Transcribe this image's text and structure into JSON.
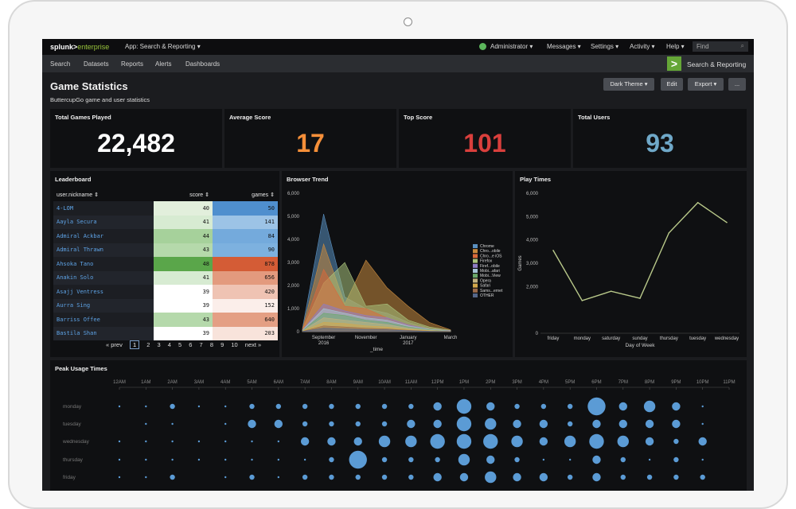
{
  "topbar": {
    "logo_main": "splunk>",
    "logo_sub": "enterprise",
    "app_menu": "App: Search & Reporting ▾",
    "user_menu": "Administrator ▾",
    "messages": "Messages ▾",
    "settings": "Settings ▾",
    "activity": "Activity ▾",
    "help": "Help ▾",
    "find_placeholder": "Find"
  },
  "nav": {
    "items": [
      "Search",
      "Datasets",
      "Reports",
      "Alerts",
      "Dashboards"
    ],
    "app_label": "Search & Reporting",
    "app_icon": ">"
  },
  "header": {
    "title": "Game Statistics",
    "subtitle": "ButtercupGo game and user statistics",
    "theme_button": "Dark Theme ▾",
    "edit_button": "Edit",
    "export_button": "Export ▾",
    "more_button": "..."
  },
  "kpis": [
    {
      "label": "Total Games Played",
      "value": "22,482",
      "color": "#ffffff"
    },
    {
      "label": "Average Score",
      "value": "17",
      "color": "#f58f39"
    },
    {
      "label": "Top Score",
      "value": "101",
      "color": "#d93f3c"
    },
    {
      "label": "Total Users",
      "value": "93",
      "color": "#6fa8c8"
    }
  ],
  "leaderboard": {
    "title": "Leaderboard",
    "columns": [
      "user.nickname ⇕",
      "score ⇕",
      "games ⇕"
    ],
    "rows": [
      {
        "name": "4-LOM",
        "score": "40",
        "games": "50",
        "score_bg": "#e2efdc",
        "games_bg": "#4f8fce"
      },
      {
        "name": "Aayla Secura",
        "score": "41",
        "games": "141",
        "score_bg": "#d7ebd2",
        "games_bg": "#9cc3e6"
      },
      {
        "name": "Admiral Ackbar",
        "score": "44",
        "games": "84",
        "score_bg": "#a6d19b",
        "games_bg": "#74aadc"
      },
      {
        "name": "Admiral Thrawn",
        "score": "43",
        "games": "90",
        "score_bg": "#b5d9ab",
        "games_bg": "#7db1df"
      },
      {
        "name": "Ahsoka Tano",
        "score": "48",
        "games": "878",
        "score_bg": "#5aa64a",
        "games_bg": "#d45c36"
      },
      {
        "name": "Anakin Solo",
        "score": "41",
        "games": "656",
        "score_bg": "#d7ebd2",
        "games_bg": "#e39a7e"
      },
      {
        "name": "Asajj Ventress",
        "score": "39",
        "games": "420",
        "score_bg": "#ffffff",
        "games_bg": "#efc3b3"
      },
      {
        "name": "Aurra Sing",
        "score": "39",
        "games": "152",
        "score_bg": "#ffffff",
        "games_bg": "#fbeeea"
      },
      {
        "name": "Barriss Offee",
        "score": "43",
        "games": "640",
        "score_bg": "#b5d9ab",
        "games_bg": "#e49f84"
      },
      {
        "name": "Bastila Shan",
        "score": "39",
        "games": "203",
        "score_bg": "#ffffff",
        "games_bg": "#f8e3db"
      }
    ],
    "pager": {
      "prev": "« prev",
      "pages": [
        "1",
        "2",
        "3",
        "4",
        "5",
        "6",
        "7",
        "8",
        "9",
        "10"
      ],
      "current": "1",
      "next": "next »"
    }
  },
  "chart_data": [
    {
      "type": "area",
      "title": "Browser Trend",
      "xlabel": "_time",
      "ylabel": "",
      "ylim": [
        0,
        6000
      ],
      "yticks": [
        "0",
        "1,000",
        "2,000",
        "3,000",
        "4,000",
        "5,000",
        "6,000"
      ],
      "x": [
        "Aug 2016",
        "September 2016",
        "Oct 2016",
        "November",
        "Dec",
        "January 2017",
        "Feb",
        "March"
      ],
      "xtick_labels": [
        "September\n2016",
        "November",
        "January\n2017",
        "March"
      ],
      "series": [
        {
          "name": "Chrome",
          "color": "#5a8fbf",
          "values": [
            150,
            5100,
            1500,
            1000,
            800,
            400,
            150,
            50
          ]
        },
        {
          "name": "Chro...obile",
          "color": "#c98a3e",
          "values": [
            100,
            3800,
            1200,
            3100,
            1900,
            1100,
            400,
            80
          ]
        },
        {
          "name": "Chro...e iOS",
          "color": "#d96a3a",
          "values": [
            80,
            2700,
            1100,
            1000,
            600,
            300,
            100,
            40
          ]
        },
        {
          "name": "Firefox",
          "color": "#a9c27c",
          "values": [
            80,
            2100,
            3000,
            1100,
            1200,
            500,
            200,
            60
          ]
        },
        {
          "name": "Firef...obile",
          "color": "#8e7cc3",
          "values": [
            60,
            1200,
            900,
            700,
            600,
            300,
            100,
            40
          ]
        },
        {
          "name": "Mobi...afari",
          "color": "#a5c4d6",
          "values": [
            60,
            1000,
            800,
            600,
            500,
            250,
            100,
            30
          ]
        },
        {
          "name": "Mobi...View",
          "color": "#6aa86a",
          "values": [
            40,
            800,
            700,
            500,
            400,
            200,
            80,
            20
          ]
        },
        {
          "name": "Opera",
          "color": "#c2b280",
          "values": [
            30,
            600,
            500,
            400,
            300,
            150,
            60,
            20
          ]
        },
        {
          "name": "Safari",
          "color": "#d4a84a",
          "values": [
            20,
            400,
            350,
            250,
            200,
            100,
            40,
            10
          ]
        },
        {
          "name": "Sams...ernet",
          "color": "#9b6a4a",
          "values": [
            10,
            250,
            200,
            150,
            120,
            60,
            20,
            5
          ]
        },
        {
          "name": "OTHER",
          "color": "#556688",
          "values": [
            10,
            150,
            120,
            90,
            80,
            40,
            15,
            5
          ]
        }
      ]
    },
    {
      "type": "line",
      "title": "Play Times",
      "xlabel": "Day of Week",
      "ylabel": "Games",
      "ylim": [
        0,
        6000
      ],
      "yticks": [
        "0",
        "2,000",
        "3,000",
        "4,000",
        "5,000",
        "6,000"
      ],
      "categories": [
        "friday",
        "monday",
        "saturday",
        "sunday",
        "thursday",
        "tuesday",
        "wednesday"
      ],
      "series": [
        {
          "name": "",
          "color": "#b9c98a",
          "values": [
            3550,
            1400,
            1800,
            1500,
            4300,
            5600,
            4750
          ]
        }
      ]
    },
    {
      "type": "scatter",
      "title": "Peak Usage Times",
      "x_categories": [
        "12AM",
        "1AM",
        "2AM",
        "3AM",
        "4AM",
        "5AM",
        "6AM",
        "7AM",
        "8AM",
        "9AM",
        "10AM",
        "11AM",
        "12PM",
        "1PM",
        "2PM",
        "3PM",
        "4PM",
        "5PM",
        "6PM",
        "7PM",
        "8PM",
        "9PM",
        "10PM",
        "11PM"
      ],
      "y_categories": [
        "monday",
        "tuesday",
        "wednesday",
        "thursday",
        "friday"
      ],
      "color": "#5b9bd5",
      "size_values": [
        [
          1,
          1,
          2,
          1,
          1,
          2,
          2,
          2,
          2,
          2,
          2,
          2,
          3,
          5,
          3,
          2,
          2,
          2,
          6,
          3,
          4,
          3,
          1,
          0
        ],
        [
          0,
          1,
          1,
          0,
          1,
          3,
          3,
          2,
          2,
          2,
          2,
          3,
          3,
          5,
          4,
          3,
          3,
          2,
          3,
          3,
          3,
          3,
          1,
          0
        ],
        [
          1,
          1,
          1,
          1,
          1,
          1,
          1,
          3,
          3,
          3,
          4,
          4,
          5,
          5,
          5,
          4,
          3,
          4,
          5,
          4,
          3,
          2,
          3,
          0
        ],
        [
          1,
          1,
          1,
          1,
          1,
          1,
          1,
          1,
          2,
          6,
          2,
          2,
          2,
          4,
          3,
          2,
          1,
          1,
          3,
          2,
          1,
          2,
          1,
          0
        ],
        [
          1,
          1,
          2,
          0,
          1,
          2,
          1,
          2,
          2,
          2,
          2,
          2,
          3,
          3,
          4,
          3,
          3,
          2,
          3,
          2,
          2,
          2,
          2,
          0
        ]
      ]
    }
  ]
}
